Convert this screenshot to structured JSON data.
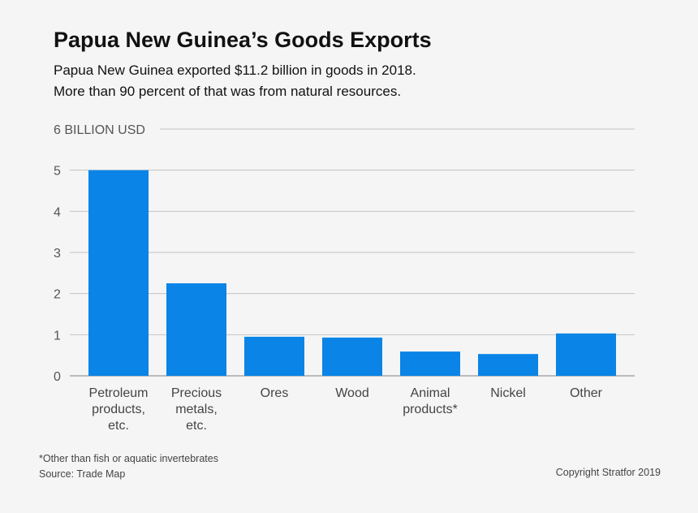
{
  "title": "Papua New Guinea’s Goods Exports",
  "subtitle": {
    "line1": "Papua New Guinea exported $11.2 billion in goods in 2018.",
    "line2": "More than 90 percent of that was from natural resources."
  },
  "footnote": "*Other than fish or aquatic invertebrates",
  "source": "Source: Trade Map",
  "copyright": "Copyright Stratfor 2019",
  "colors": {
    "bar": "#0a84e6",
    "grid": "#c4c4c4",
    "axis": "#999999"
  },
  "chart_data": {
    "type": "bar",
    "title": "Papua New Guinea’s Goods Exports",
    "ylabel": "6 BILLION USD",
    "ylim": [
      0,
      6
    ],
    "yticks": [
      0,
      1,
      2,
      3,
      4,
      5
    ],
    "top_tick_label": "6 BILLION USD",
    "grid": true,
    "categories": [
      [
        "Petroleum",
        "products,",
        "etc."
      ],
      [
        "Precious",
        "metals,",
        "etc."
      ],
      [
        "Ores"
      ],
      [
        "Wood"
      ],
      [
        "Animal",
        "products*"
      ],
      [
        "Nickel"
      ],
      [
        "Other"
      ]
    ],
    "values": [
      5.0,
      2.25,
      0.95,
      0.93,
      0.59,
      0.53,
      1.03
    ]
  }
}
